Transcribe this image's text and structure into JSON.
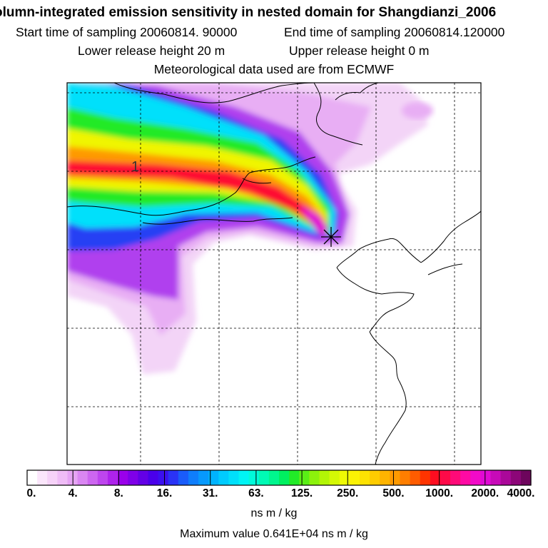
{
  "header": {
    "title": "olumn-integrated emission sensitivity in nested domain for Shangdianzi_2006",
    "start_label": "Start time of sampling 20060814. 90000",
    "end_label": "End time of sampling 20060814.120000",
    "lower_label": "Lower release height   20 m",
    "upper_label": "Upper release height    0 m",
    "met_label": "Meteorological data used are from ECMWF"
  },
  "map": {
    "contour_label": "1",
    "release_site": "Shangdianzi"
  },
  "colorbar": {
    "tick_labels": [
      "0.",
      "4.",
      "8.",
      "16.",
      "31.",
      "63.",
      "125.",
      "250.",
      "500.",
      "1000.",
      "2000.",
      "4000."
    ],
    "colors": [
      "#ffffff",
      "#fbe6fb",
      "#f6d2f8",
      "#efbcf6",
      "#e6a4f4",
      "#da86f2",
      "#cd66f0",
      "#be45ee",
      "#ae23ec",
      "#9a00ea",
      "#7f00e8",
      "#6300e6",
      "#4a00ea",
      "#3b10f0",
      "#2a33f6",
      "#1a5cfa",
      "#0f7efc",
      "#0799fd",
      "#00b3fe",
      "#00cbfe",
      "#00e0fb",
      "#00f4f5",
      "#00fbda",
      "#00fab5",
      "#00f68e",
      "#00f060",
      "#22ea28",
      "#5aee16",
      "#8cf20c",
      "#b2f506",
      "#d4f805",
      "#eefa04",
      "#fbf204",
      "#fde202",
      "#fecc00",
      "#feb400",
      "#fe9a00",
      "#fe7e00",
      "#fe5c00",
      "#fe3400",
      "#fe0d20",
      "#fe0a48",
      "#fe0a78",
      "#fe0aa4",
      "#f20ac8",
      "#e00ad4",
      "#c70ab8",
      "#aa0899",
      "#8c0678",
      "#6d055c"
    ],
    "unit": "ns m / kg",
    "max_label": "Maximum value  0.641E+04 ns m / kg"
  }
}
